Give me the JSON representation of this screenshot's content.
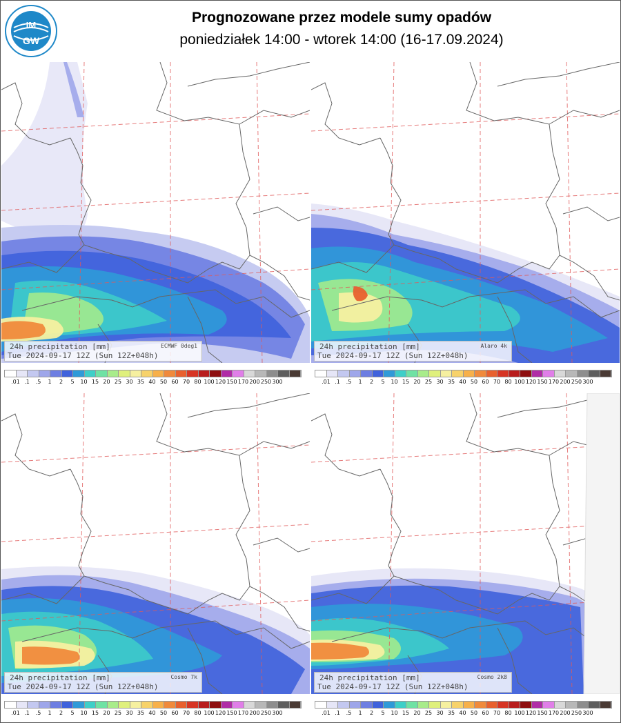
{
  "header": {
    "title": "Prognozowane przez modele sumy opadów",
    "subtitle": "poniedziałek 14:00 - wtorek 14:00 (16-17.09.2024)"
  },
  "logo": {
    "text": "IMGW",
    "ring_text": "INSTYTUT METEOROLOGII I GOSPODARKI WODNEJ",
    "color": "#1e88c8"
  },
  "panels": [
    {
      "name": "ECMWF",
      "line1": "24h precipitation    [mm]",
      "model": "ECMWF 0deg1",
      "line2": "Tue 2024-09-17 12Z (Sun 12Z+048h)"
    },
    {
      "name": "Alaro",
      "line1": "24h precipitation    [mm]",
      "model": "Alaro 4k",
      "line2": "Tue 2024-09-17 12Z (Sun 12Z+048h)"
    },
    {
      "name": "Cosmo7k",
      "line1": "24h precipitation    [mm]",
      "model": "Cosmo 7k",
      "line2": "Tue 2024-09-17 12Z (Sun 12Z+048h)"
    },
    {
      "name": "Cosmo2k8",
      "line1": "24h precipitation    [mm]",
      "model": "Cosmo 2k8",
      "line2": "Tue 2024-09-17 12Z (Sun 12Z+048h)"
    }
  ],
  "legend": {
    "labels": [
      ".01",
      ".1",
      ".5",
      "1",
      "2",
      "5",
      "10",
      "15",
      "20",
      "25",
      "30",
      "35",
      "40",
      "50",
      "60",
      "70",
      "80",
      "100",
      "120",
      "150",
      "170",
      "200",
      "250",
      "300"
    ],
    "colors": [
      "#ffffff",
      "#e6e6f7",
      "#c3c8f0",
      "#9ea6ea",
      "#6d7ee2",
      "#3f62dc",
      "#2f9ad8",
      "#3ecfc8",
      "#6fe2a4",
      "#a8ec8a",
      "#dff07c",
      "#f6f0a0",
      "#f7d26a",
      "#f7b04a",
      "#f08a3c",
      "#e8602e",
      "#d73524",
      "#b81c1c",
      "#8e0f10",
      "#b02ca6",
      "#e07ee8",
      "#d8d8d8",
      "#b8b8b8",
      "#8e8e8e",
      "#5e5e5e",
      "#4a3a34"
    ]
  }
}
